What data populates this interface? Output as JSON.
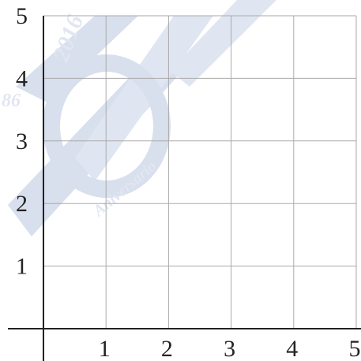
{
  "chart_data": {
    "type": "line",
    "xlim": [
      0,
      5
    ],
    "ylim": [
      0,
      5
    ],
    "xticks": [
      1,
      2,
      3,
      4,
      5
    ],
    "yticks": [
      1,
      2,
      3,
      4,
      5
    ],
    "grid": true,
    "watermark": {
      "year": "2016",
      "number": "86",
      "word": "Aniversario"
    }
  }
}
